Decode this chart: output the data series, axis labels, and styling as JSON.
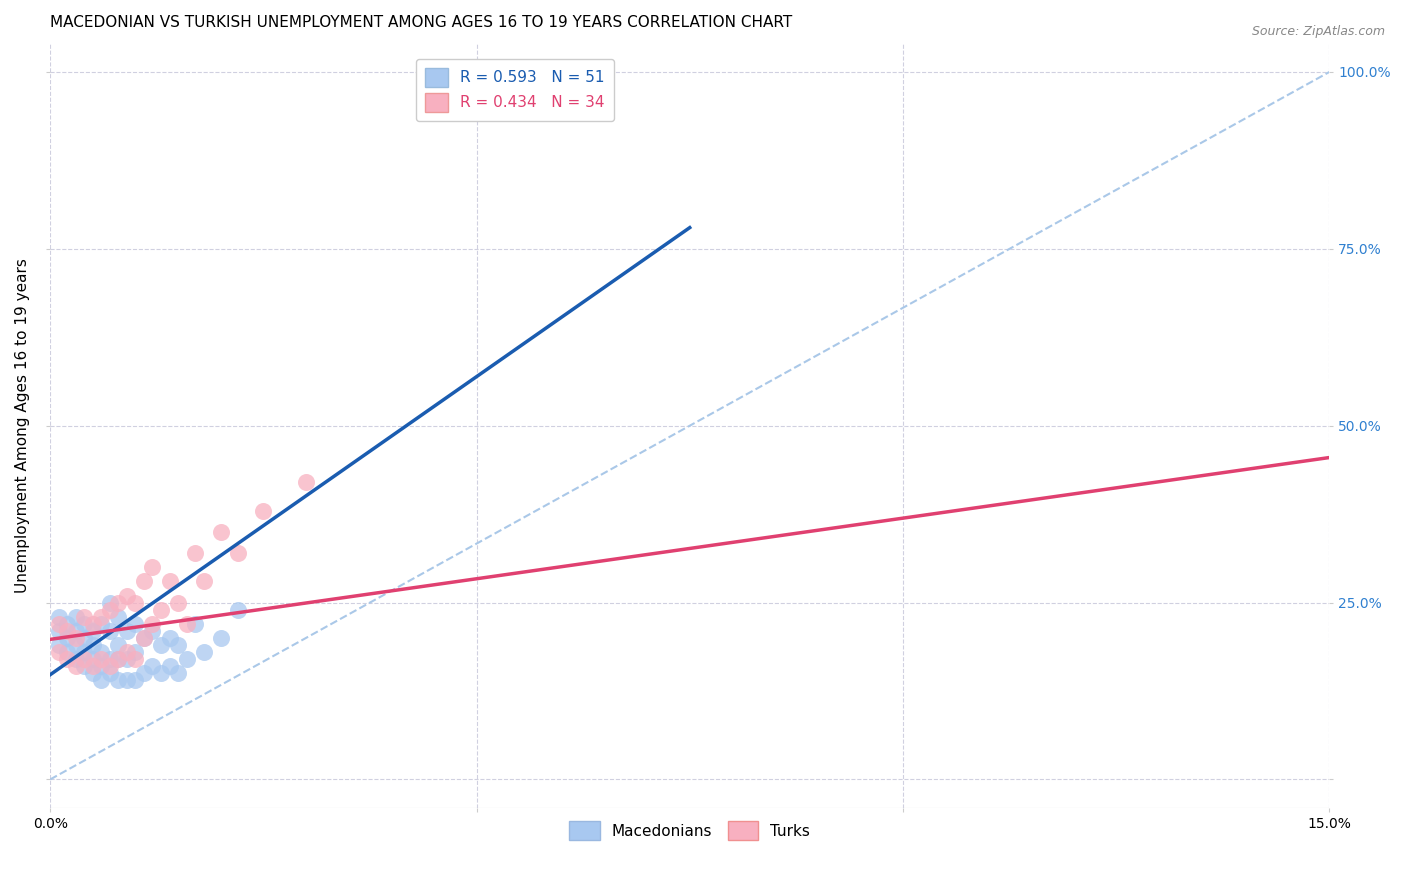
{
  "title": "MACEDONIAN VS TURKISH UNEMPLOYMENT AMONG AGES 16 TO 19 YEARS CORRELATION CHART",
  "source": "Source: ZipAtlas.com",
  "ylabel": "Unemployment Among Ages 16 to 19 years",
  "xlim": [
    0.0,
    0.15
  ],
  "ylim": [
    -0.04,
    1.04
  ],
  "yticks": [
    0.0,
    0.25,
    0.5,
    0.75,
    1.0
  ],
  "ytick_labels": [
    "",
    "25.0%",
    "50.0%",
    "75.0%",
    "100.0%"
  ],
  "xticks": [
    0.0,
    0.05,
    0.1,
    0.15
  ],
  "xtick_labels": [
    "0.0%",
    "",
    "",
    "15.0%"
  ],
  "macedonian_R": 0.593,
  "macedonian_N": 51,
  "turkish_R": 0.434,
  "turkish_N": 34,
  "macedonian_color": "#a8c8f0",
  "turkish_color": "#f8b0c0",
  "macedonian_line_color": "#1a5cb0",
  "turkish_line_color": "#e04070",
  "diagonal_color": "#aac8e8",
  "background_color": "#ffffff",
  "grid_color": "#d0d0e0",
  "mac_line_x0": 0.0,
  "mac_line_y0": 0.148,
  "mac_line_x1": 0.075,
  "mac_line_y1": 0.78,
  "turk_line_x0": 0.0,
  "turk_line_y0": 0.198,
  "turk_line_x1": 0.15,
  "turk_line_y1": 0.455,
  "macedonian_x": [
    0.001,
    0.001,
    0.001,
    0.002,
    0.002,
    0.002,
    0.003,
    0.003,
    0.003,
    0.003,
    0.004,
    0.004,
    0.004,
    0.004,
    0.005,
    0.005,
    0.005,
    0.005,
    0.006,
    0.006,
    0.006,
    0.006,
    0.007,
    0.007,
    0.007,
    0.007,
    0.008,
    0.008,
    0.008,
    0.008,
    0.009,
    0.009,
    0.009,
    0.01,
    0.01,
    0.01,
    0.011,
    0.011,
    0.012,
    0.012,
    0.013,
    0.013,
    0.014,
    0.014,
    0.015,
    0.015,
    0.016,
    0.017,
    0.018,
    0.02,
    0.022
  ],
  "macedonian_y": [
    0.19,
    0.21,
    0.23,
    0.18,
    0.2,
    0.22,
    0.17,
    0.19,
    0.21,
    0.23,
    0.16,
    0.18,
    0.2,
    0.22,
    0.15,
    0.17,
    0.19,
    0.21,
    0.14,
    0.16,
    0.18,
    0.22,
    0.15,
    0.17,
    0.21,
    0.25,
    0.14,
    0.17,
    0.19,
    0.23,
    0.14,
    0.17,
    0.21,
    0.14,
    0.18,
    0.22,
    0.15,
    0.2,
    0.16,
    0.21,
    0.15,
    0.19,
    0.16,
    0.2,
    0.15,
    0.19,
    0.17,
    0.22,
    0.18,
    0.2,
    0.24
  ],
  "turkish_x": [
    0.001,
    0.001,
    0.002,
    0.002,
    0.003,
    0.003,
    0.004,
    0.004,
    0.005,
    0.005,
    0.006,
    0.006,
    0.007,
    0.007,
    0.008,
    0.008,
    0.009,
    0.009,
    0.01,
    0.01,
    0.011,
    0.011,
    0.012,
    0.012,
    0.013,
    0.014,
    0.015,
    0.016,
    0.017,
    0.018,
    0.02,
    0.022,
    0.025,
    0.03
  ],
  "turkish_y": [
    0.18,
    0.22,
    0.17,
    0.21,
    0.16,
    0.2,
    0.17,
    0.23,
    0.16,
    0.22,
    0.17,
    0.23,
    0.16,
    0.24,
    0.17,
    0.25,
    0.18,
    0.26,
    0.17,
    0.25,
    0.2,
    0.28,
    0.22,
    0.3,
    0.24,
    0.28,
    0.25,
    0.22,
    0.32,
    0.28,
    0.35,
    0.32,
    0.38,
    0.42
  ],
  "title_fontsize": 11,
  "axis_label_fontsize": 11,
  "tick_fontsize": 10,
  "legend_fontsize": 11,
  "source_fontsize": 9
}
